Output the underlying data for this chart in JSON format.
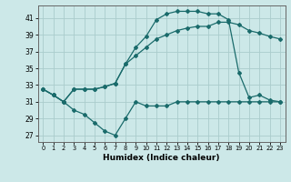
{
  "xlabel": "Humidex (Indice chaleur)",
  "bg_color": "#cce8e8",
  "grid_color": "#aacccc",
  "line_color": "#1a6b6b",
  "x_ticks": [
    0,
    1,
    2,
    3,
    4,
    5,
    6,
    7,
    8,
    9,
    10,
    11,
    12,
    13,
    14,
    15,
    16,
    17,
    18,
    19,
    20,
    21,
    22,
    23
  ],
  "y_ticks": [
    27,
    29,
    31,
    33,
    35,
    37,
    39,
    41
  ],
  "ylim": [
    26.2,
    42.5
  ],
  "xlim": [
    -0.5,
    23.5
  ],
  "line1_x": [
    0,
    1,
    2,
    3,
    4,
    5,
    6,
    7,
    8,
    9,
    10,
    11,
    12,
    13,
    14,
    15,
    16,
    17,
    18,
    19,
    20,
    21,
    22,
    23
  ],
  "line1_y": [
    32.5,
    31.8,
    31.0,
    30.0,
    29.5,
    28.5,
    27.5,
    27.0,
    29.0,
    31.0,
    30.5,
    30.5,
    30.5,
    31.0,
    31.0,
    31.0,
    31.0,
    31.0,
    31.0,
    31.0,
    31.0,
    31.0,
    31.0,
    31.0
  ],
  "line2_x": [
    0,
    1,
    2,
    3,
    4,
    5,
    6,
    7,
    8,
    9,
    10,
    11,
    12,
    13,
    14,
    15,
    16,
    17,
    18,
    19,
    20,
    21,
    22,
    23
  ],
  "line2_y": [
    32.5,
    31.8,
    31.0,
    32.5,
    32.5,
    32.5,
    32.8,
    33.2,
    35.5,
    37.5,
    38.8,
    40.8,
    41.5,
    41.8,
    41.8,
    41.8,
    41.5,
    41.5,
    40.8,
    34.5,
    31.5,
    31.8,
    31.2,
    31.0
  ],
  "line3_x": [
    0,
    1,
    2,
    3,
    4,
    5,
    6,
    7,
    8,
    9,
    10,
    11,
    12,
    13,
    14,
    15,
    16,
    17,
    18,
    19,
    20,
    21,
    22,
    23
  ],
  "line3_y": [
    32.5,
    31.8,
    31.0,
    32.5,
    32.5,
    32.5,
    32.8,
    33.2,
    35.5,
    36.5,
    37.5,
    38.5,
    39.0,
    39.5,
    39.8,
    40.0,
    40.0,
    40.5,
    40.5,
    40.2,
    39.5,
    39.2,
    38.8,
    38.5
  ]
}
